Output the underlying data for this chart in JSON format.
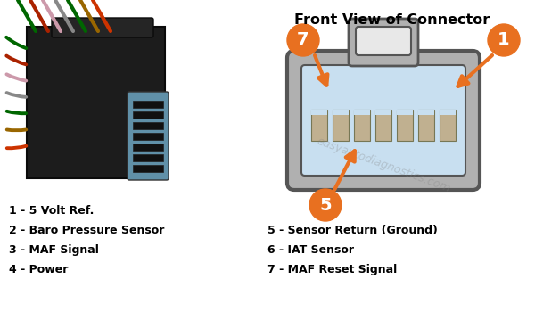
{
  "title": "Front View of Connector",
  "watermark": "easyautodiagnostics.com",
  "legend_left": [
    "1 - 5 Volt Ref.",
    "2 - Baro Pressure Sensor",
    "3 - MAF Signal",
    "4 - Power"
  ],
  "legend_right": [
    "5 - Sensor Return (Ground)",
    "6 - IAT Sensor",
    "7 - MAF Reset Signal"
  ],
  "circle_color": "#E87020",
  "circle_text_color": "#FFFFFF",
  "connector_outer_color": "#B0B0B0",
  "connector_inner_color": "#C8DFF0",
  "connector_tab_color": "#D0D0D0",
  "connector_border_color": "#555555",
  "terminal_color": "#C0B090",
  "arrow_color": "#E87020",
  "background_color": "#FFFFFF",
  "legend_fontsize": 9.0,
  "title_fontsize": 11.5,
  "plug_body_color": "#1a1a1a",
  "plug_face_color": "#7aaabb",
  "wire_colors": [
    "#006600",
    "#aa2200",
    "#cc99aa",
    "#888888",
    "#006600",
    "#996600",
    "#cc3300"
  ]
}
